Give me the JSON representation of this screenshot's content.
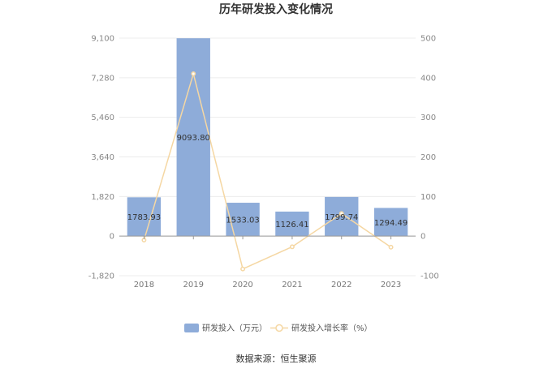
{
  "chart_data": {
    "type": "bar",
    "title": "历年研发投入变化情况",
    "categories": [
      "2018",
      "2019",
      "2020",
      "2021",
      "2022",
      "2023"
    ],
    "series": [
      {
        "name": "研发投入（万元）",
        "type": "bar",
        "axis": "left",
        "values": [
          1783.93,
          9093.8,
          1533.03,
          1126.41,
          1799.74,
          1294.49
        ],
        "labels": [
          "1783.93",
          "9093.80",
          "1533.03",
          "1126.41",
          "1799.74",
          "1294.49"
        ],
        "color": "#8eacd9"
      },
      {
        "name": "研发投入增长率（%）",
        "type": "line",
        "axis": "right",
        "values": [
          -10,
          410,
          -83,
          -27,
          57,
          -28
        ],
        "color": "#f5d7a3"
      }
    ],
    "y_left": {
      "ticks": [
        "9,100",
        "7,280",
        "5,460",
        "3,640",
        "1,820",
        "0",
        "-1,820"
      ],
      "ylim": [
        -1820,
        9100
      ]
    },
    "y_right": {
      "ticks": [
        "500",
        "400",
        "300",
        "200",
        "100",
        "0",
        "-100"
      ],
      "ylim": [
        -100,
        500
      ]
    },
    "grid": true,
    "legend": "bottom"
  },
  "footer": {
    "source": "数据来源：恒生聚源"
  }
}
